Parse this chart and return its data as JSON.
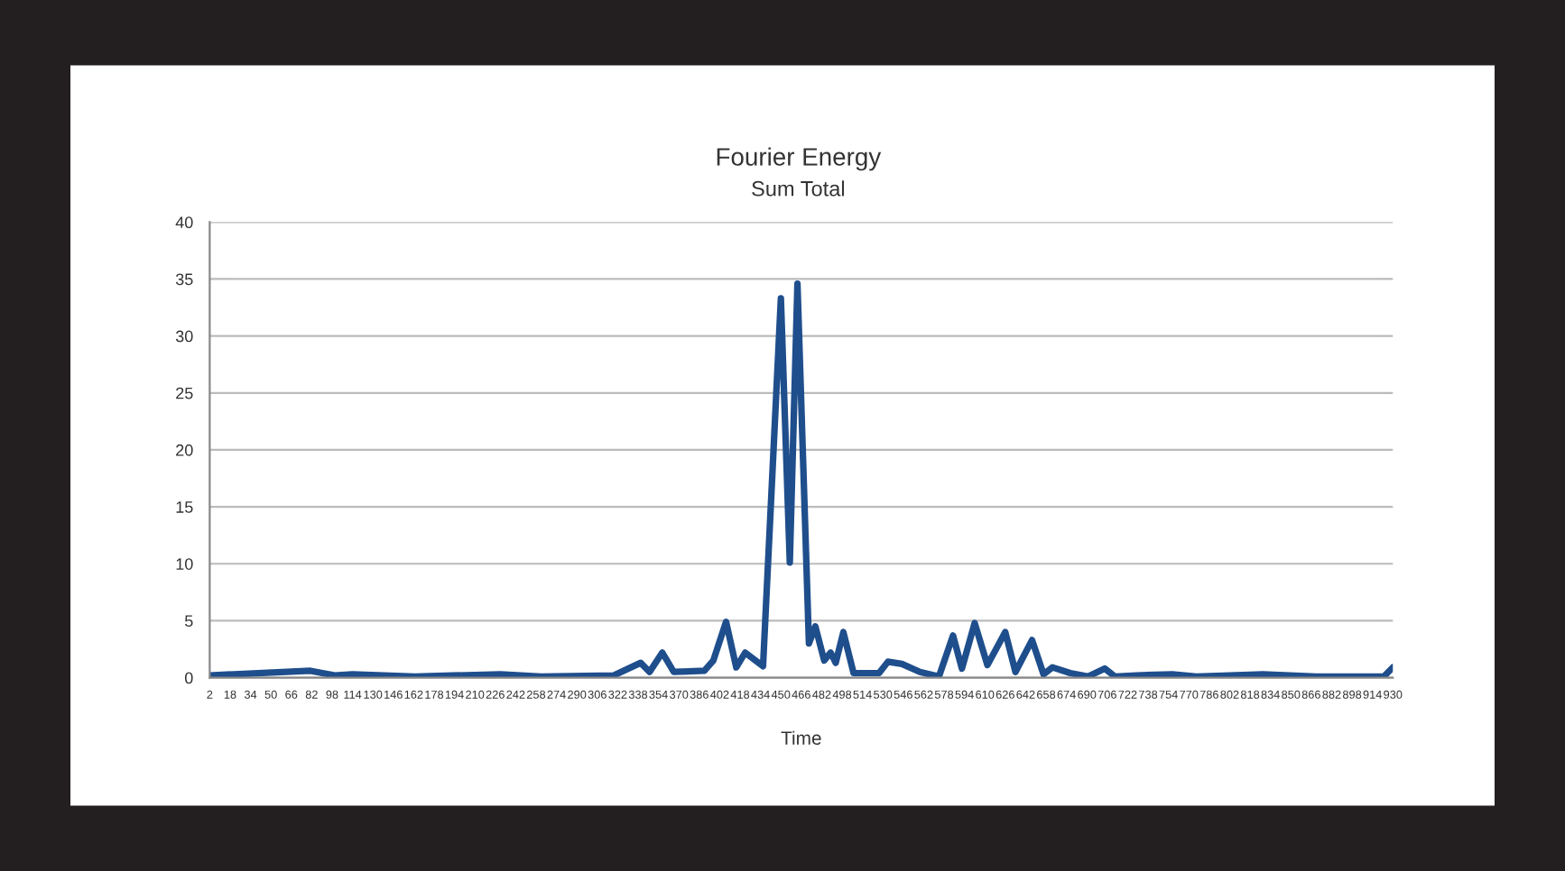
{
  "chart_data": {
    "type": "line",
    "title": "Fourier Energy",
    "subtitle": "Sum Total",
    "xlabel": "Time",
    "x": [
      2,
      81,
      100,
      114,
      163,
      230,
      262,
      319,
      340,
      347,
      357,
      366,
      390,
      397,
      407,
      415,
      422,
      436,
      450,
      457,
      463,
      472,
      477,
      484,
      489,
      493,
      499,
      507,
      527,
      534,
      545,
      559,
      574,
      585,
      592,
      602,
      612,
      626,
      634,
      647,
      656,
      663,
      677,
      691,
      704,
      712,
      729,
      757,
      776,
      828,
      870,
      923,
      930
    ],
    "series": [
      {
        "color": "#1f4e8c",
        "values": [
          0.2,
          0.6,
          0.2,
          0.3,
          0.1,
          0.3,
          0.1,
          0.2,
          1.3,
          0.5,
          2.2,
          0.5,
          0.6,
          1.5,
          4.9,
          0.9,
          2.2,
          1.0,
          33.3,
          10.1,
          34.6,
          3.0,
          4.5,
          1.5,
          2.2,
          1.3,
          4.0,
          0.4,
          0.4,
          1.4,
          1.2,
          0.5,
          0.1,
          3.7,
          0.8,
          4.8,
          1.1,
          4.0,
          0.5,
          3.3,
          0.3,
          0.9,
          0.4,
          0.1,
          0.8,
          0.1,
          0.2,
          0.3,
          0.1,
          0.3,
          0.1,
          0.1,
          0.9
        ]
      }
    ],
    "xlim": [
      2,
      930
    ],
    "xticks": [
      2,
      18,
      34,
      50,
      66,
      82,
      98,
      114,
      130,
      146,
      162,
      178,
      194,
      210,
      226,
      242,
      258,
      274,
      290,
      306,
      322,
      338,
      354,
      370,
      386,
      402,
      418,
      434,
      450,
      466,
      482,
      498,
      514,
      530,
      546,
      562,
      578,
      594,
      610,
      626,
      642,
      658,
      674,
      690,
      706,
      722,
      738,
      754,
      770,
      786,
      802,
      818,
      834,
      850,
      866,
      882,
      898,
      914,
      930
    ],
    "ylim": [
      0,
      40
    ],
    "yticks": [
      0,
      5,
      10,
      15,
      20,
      25,
      30,
      35,
      40
    ],
    "grid": "y",
    "marker": "none",
    "line_style": "solid"
  }
}
